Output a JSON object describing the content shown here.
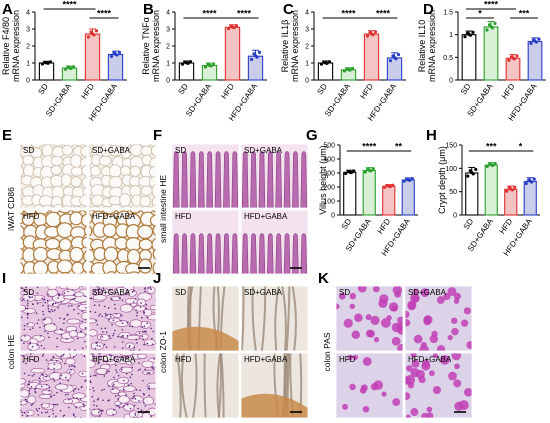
{
  "groups": [
    "SD",
    "SD+GABA",
    "HFD",
    "HFD+GABA"
  ],
  "colors": {
    "sd": "#000000",
    "sd_gaba": "#2ca02c",
    "hfd": "#e03030",
    "hfd_gaba": "#2a3fc8",
    "hfd_fill": "#f4c4c4",
    "hfd_gaba_fill": "#c9cde9",
    "sd_gaba_fill": "#d9efd6"
  },
  "chart_data": [
    {
      "id": "A",
      "type": "bar",
      "ylabel": [
        "Relative F4/80",
        "mRNA expression"
      ],
      "ylim": [
        0,
        4
      ],
      "yticks": [
        0,
        1,
        2,
        3,
        4
      ],
      "categories": [
        "SD",
        "SD+GABA",
        "HFD",
        "HFD+GABA"
      ],
      "values": [
        1.0,
        0.7,
        2.7,
        1.5
      ],
      "errors": [
        0.1,
        0.12,
        0.3,
        0.2
      ],
      "significance": [
        {
          "from": 0,
          "to": 2,
          "label": "****",
          "level": 1
        },
        {
          "from": 2,
          "to": 3,
          "label": "****",
          "level": 0
        }
      ]
    },
    {
      "id": "B",
      "type": "bar",
      "ylabel": [
        "Relative TNFα",
        "mRNA expression"
      ],
      "ylim": [
        0,
        4
      ],
      "yticks": [
        0,
        1,
        2,
        3,
        4
      ],
      "categories": [
        "SD",
        "SD+GABA",
        "HFD",
        "HFD+GABA"
      ],
      "values": [
        1.0,
        0.85,
        3.1,
        1.4
      ],
      "errors": [
        0.12,
        0.15,
        0.15,
        0.35
      ],
      "significance": [
        {
          "from": 0,
          "to": 2,
          "label": "****",
          "level": 0
        },
        {
          "from": 2,
          "to": 3,
          "label": "****",
          "level": 0
        }
      ]
    },
    {
      "id": "C",
      "type": "bar",
      "ylabel": [
        "Relative IL1β",
        "mRNA expression"
      ],
      "ylim": [
        0,
        4
      ],
      "yticks": [
        0,
        1,
        2,
        3,
        4
      ],
      "categories": [
        "SD",
        "SD+GABA",
        "HFD",
        "HFD+GABA"
      ],
      "values": [
        1.0,
        0.6,
        2.7,
        1.3
      ],
      "errors": [
        0.12,
        0.12,
        0.2,
        0.3
      ],
      "significance": [
        {
          "from": 0,
          "to": 2,
          "label": "****",
          "level": 0
        },
        {
          "from": 2,
          "to": 3,
          "label": "****",
          "level": 0
        }
      ]
    },
    {
      "id": "D",
      "type": "bar",
      "ylabel": [
        "Relative IL10",
        "mRNA expression"
      ],
      "ylim": [
        0,
        1.5
      ],
      "yticks": [
        0,
        0.5,
        1.0,
        1.5
      ],
      "categories": [
        "SD",
        "SD+GABA",
        "HFD",
        "HFD+GABA"
      ],
      "values": [
        1.0,
        1.17,
        0.48,
        0.85
      ],
      "errors": [
        0.08,
        0.12,
        0.08,
        0.08
      ],
      "significance": [
        {
          "from": 0,
          "to": 2,
          "label": "****",
          "level": 1
        },
        {
          "from": 0,
          "to": 1,
          "label": "*",
          "level": 0
        },
        {
          "from": 2,
          "to": 3,
          "label": "***",
          "level": 0
        }
      ]
    },
    {
      "id": "G",
      "type": "bar",
      "ylabel": [
        "Villus height (μm)"
      ],
      "ylim": [
        0,
        500
      ],
      "yticks": [
        0,
        100,
        200,
        300,
        400,
        500
      ],
      "categories": [
        "SD",
        "SD+GABA",
        "HFD",
        "HFD+GABA"
      ],
      "values": [
        305,
        318,
        205,
        250
      ],
      "errors": [
        15,
        20,
        12,
        15
      ],
      "significance": [
        {
          "from": 0,
          "to": 2,
          "label": "****",
          "level": 0
        },
        {
          "from": 2,
          "to": 3,
          "label": "**",
          "level": 0
        }
      ]
    },
    {
      "id": "H",
      "type": "bar",
      "ylabel": [
        "Crypt depth (μm)"
      ],
      "ylim": [
        0,
        150
      ],
      "yticks": [
        0,
        50,
        100,
        150
      ],
      "categories": [
        "SD",
        "SD+GABA",
        "HFD",
        "HFD+GABA"
      ],
      "values": [
        90,
        107,
        55,
        72
      ],
      "errors": [
        12,
        5,
        7,
        8
      ],
      "significance": [
        {
          "from": 0,
          "to": 2,
          "label": "***",
          "level": 0
        },
        {
          "from": 2,
          "to": 3,
          "label": "*",
          "level": 0
        }
      ]
    }
  ],
  "image_panels": [
    {
      "id": "E",
      "side_label": "iWAT CD86",
      "texture": "adipose",
      "cells": [
        "SD",
        "SD+GABA",
        "HFD",
        "HFD+GABA"
      ]
    },
    {
      "id": "F",
      "side_label": "small intestine HE",
      "texture": "villi",
      "cells": [
        "SD",
        "SD+GABA",
        "HFD",
        "HFD+GABA"
      ]
    },
    {
      "id": "I",
      "side_label": "colon HE",
      "texture": "colonhe",
      "cells": [
        "SD",
        "SD+GABA",
        "HFD",
        "HFD+GABA"
      ]
    },
    {
      "id": "J",
      "side_label": "colon ZO-1",
      "texture": "zo1",
      "cells": [
        "SD",
        "SD+GABA",
        "HFD",
        "HFD+GABA"
      ]
    },
    {
      "id": "K",
      "side_label": "colon PAS",
      "texture": "pas",
      "cells": [
        "SD",
        "SD+GABA",
        "HFD",
        "HFD+GABA"
      ]
    }
  ]
}
